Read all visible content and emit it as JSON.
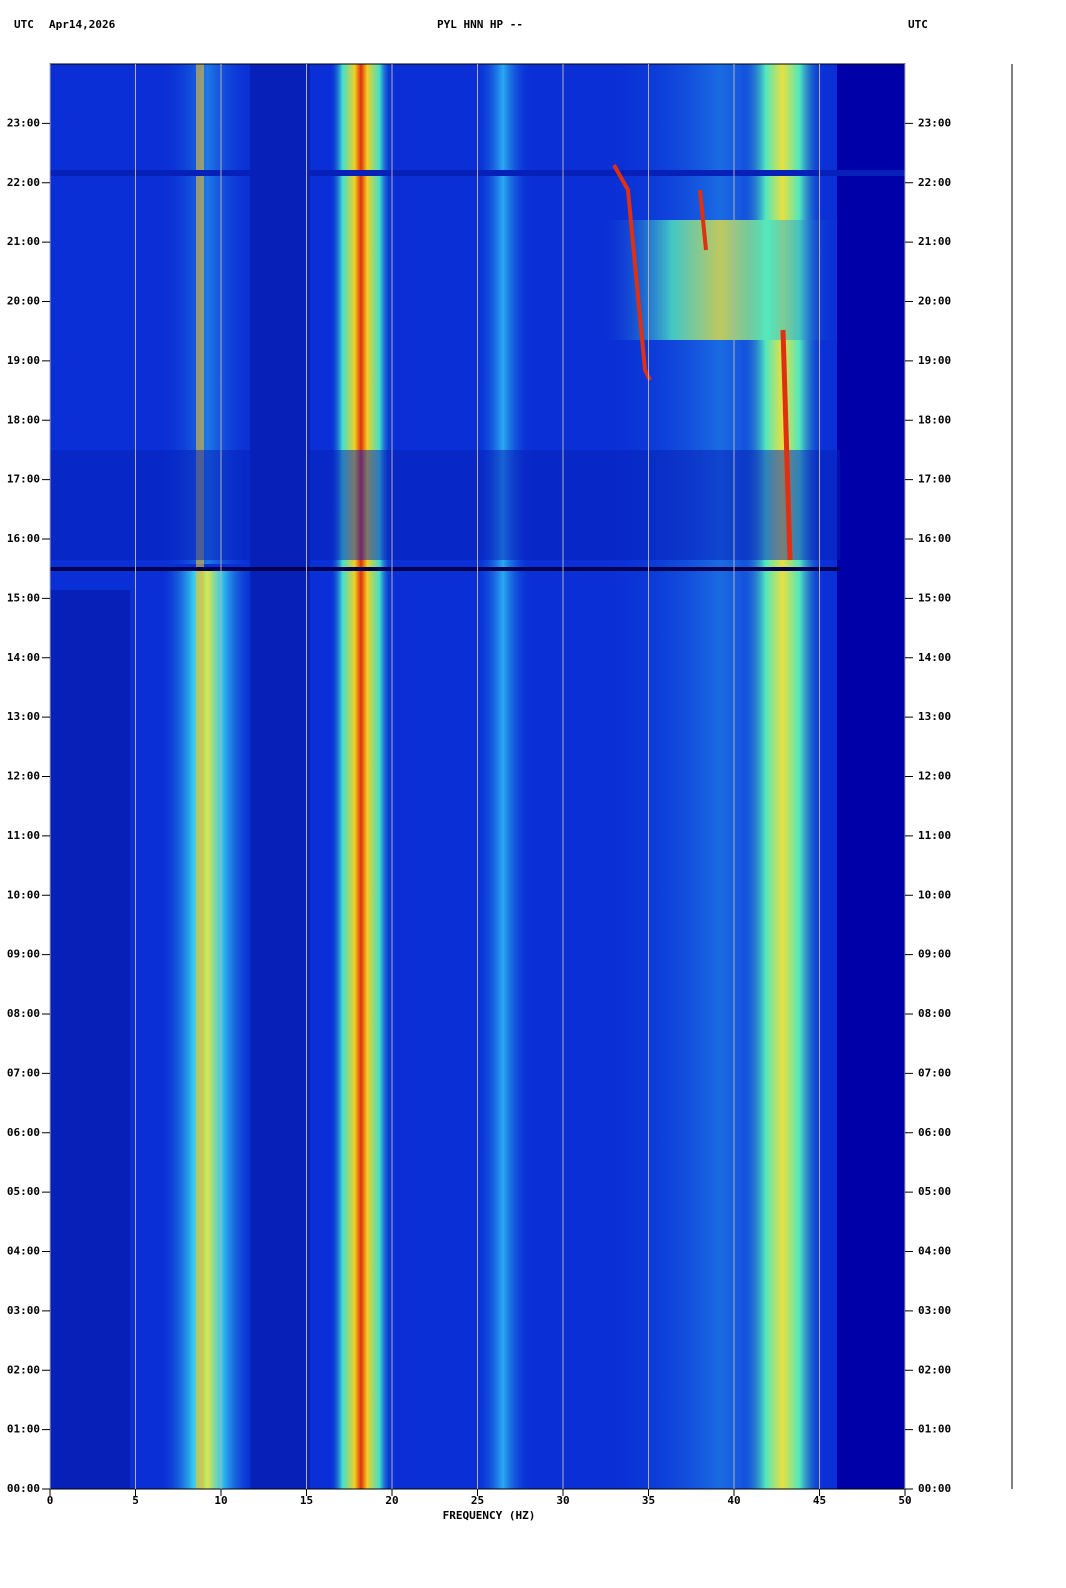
{
  "chart_data": {
    "type": "spectrogram",
    "title": "PYL HNN HP --",
    "left_label": "UTC",
    "date": "Apr14,2026",
    "right_label": "UTC",
    "x_label": "FREQUENCY (HZ)",
    "xlim": [
      0,
      50
    ],
    "xticks": [
      0,
      5,
      10,
      15,
      20,
      25,
      30,
      35,
      40,
      45,
      50
    ],
    "ylim": [
      0,
      24
    ],
    "yticks": [
      {
        "value": 0,
        "label": "00:00"
      },
      {
        "value": 1,
        "label": "01:00"
      },
      {
        "value": 2,
        "label": "02:00"
      },
      {
        "value": 3,
        "label": "03:00"
      },
      {
        "value": 4,
        "label": "04:00"
      },
      {
        "value": 5,
        "label": "05:00"
      },
      {
        "value": 6,
        "label": "06:00"
      },
      {
        "value": 7,
        "label": "07:00"
      },
      {
        "value": 8,
        "label": "08:00"
      },
      {
        "value": 9,
        "label": "09:00"
      },
      {
        "value": 10,
        "label": "10:00"
      },
      {
        "value": 11,
        "label": "11:00"
      },
      {
        "value": 12,
        "label": "12:00"
      },
      {
        "value": 13,
        "label": "13:00"
      },
      {
        "value": 14,
        "label": "14:00"
      },
      {
        "value": 15,
        "label": "15:00"
      },
      {
        "value": 16,
        "label": "16:00"
      },
      {
        "value": 17,
        "label": "17:00"
      },
      {
        "value": 18,
        "label": "18:00"
      },
      {
        "value": 19,
        "label": "19:00"
      },
      {
        "value": 20,
        "label": "20:00"
      },
      {
        "value": 21,
        "label": "21:00"
      },
      {
        "value": 22,
        "label": "22:00"
      },
      {
        "value": 23,
        "label": "23:00"
      }
    ],
    "grid": true
  }
}
